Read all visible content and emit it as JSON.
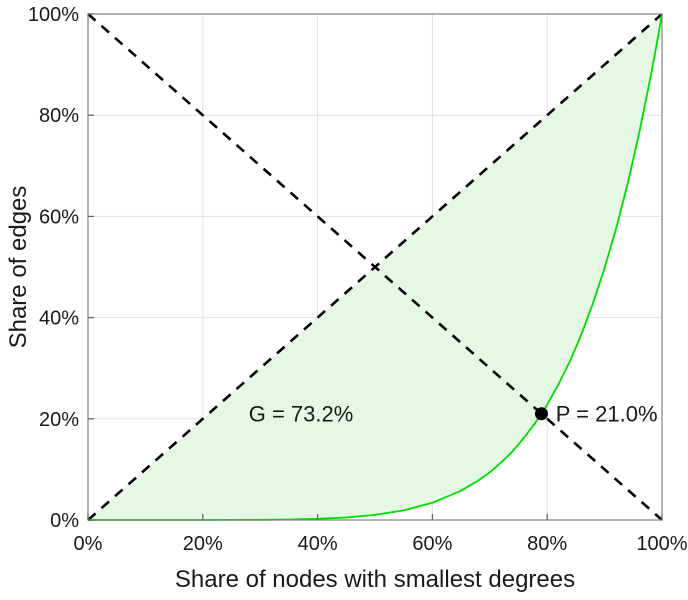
{
  "chart_data": {
    "type": "line",
    "title": "",
    "xlabel": "Share of nodes with smallest degrees",
    "ylabel": "Share of edges",
    "xlim": [
      0,
      100
    ],
    "ylim": [
      0,
      100
    ],
    "grid": true,
    "legend": "none",
    "x_ticks": [
      0,
      20,
      40,
      60,
      80,
      100
    ],
    "y_ticks": [
      0,
      20,
      40,
      60,
      80,
      100
    ],
    "x_tick_labels": [
      "0%",
      "20%",
      "40%",
      "60%",
      "80%",
      "100%"
    ],
    "y_tick_labels": [
      "0%",
      "20%",
      "40%",
      "60%",
      "80%",
      "100%"
    ],
    "colors": {
      "plot_bg": "#ffffff",
      "grid": "#e0e0e0",
      "box": "#808080",
      "tick": "#606060",
      "text": "#1a1a1a",
      "curve": "#00dd00",
      "area_fill": "#e4f8e4",
      "dashed": "#000000",
      "point": "#000000"
    },
    "series": [
      {
        "name": "lorenz-curve",
        "color": "#00dd00",
        "width": 1.8,
        "fill_color": "#e4f8e4",
        "x": [
          0,
          10,
          20,
          25,
          30,
          35,
          40,
          45,
          50,
          55,
          60,
          65,
          68,
          70,
          72,
          74,
          76,
          78,
          79,
          80,
          82,
          84,
          86,
          88,
          90,
          92,
          94,
          96,
          98,
          99,
          100
        ],
        "y": [
          0,
          0,
          0,
          0.01,
          0.03,
          0.1,
          0.23,
          0.5,
          1.0,
          1.9,
          3.4,
          5.8,
          7.8,
          9.4,
          11.4,
          13.6,
          16.3,
          19.3,
          21.0,
          22.8,
          26.9,
          31.5,
          36.8,
          42.9,
          49.8,
          57.6,
          66.4,
          76.3,
          87.5,
          93.6,
          100
        ]
      },
      {
        "name": "equality-diagonal",
        "style": "dashed",
        "color": "#000000",
        "width": 2.6,
        "dash": "10 8",
        "x": [
          0,
          100
        ],
        "y": [
          0,
          100
        ]
      },
      {
        "name": "anti-diagonal",
        "style": "dashed",
        "color": "#000000",
        "width": 2.6,
        "dash": "10 8",
        "x": [
          0,
          100
        ],
        "y": [
          100,
          0
        ]
      }
    ],
    "point": {
      "x": 79,
      "y": 21,
      "radius": 6.5,
      "color": "#000000"
    },
    "annotations": [
      {
        "id": "gini-annotation",
        "text": "G = 73.2%",
        "x": 28,
        "y": 21,
        "anchor": "start"
      },
      {
        "id": "p-annotation",
        "text": "P = 21.0%",
        "x": 81.5,
        "y": 21,
        "anchor": "start"
      }
    ],
    "gini_percent": 73.2,
    "p_percent": 21.0
  }
}
